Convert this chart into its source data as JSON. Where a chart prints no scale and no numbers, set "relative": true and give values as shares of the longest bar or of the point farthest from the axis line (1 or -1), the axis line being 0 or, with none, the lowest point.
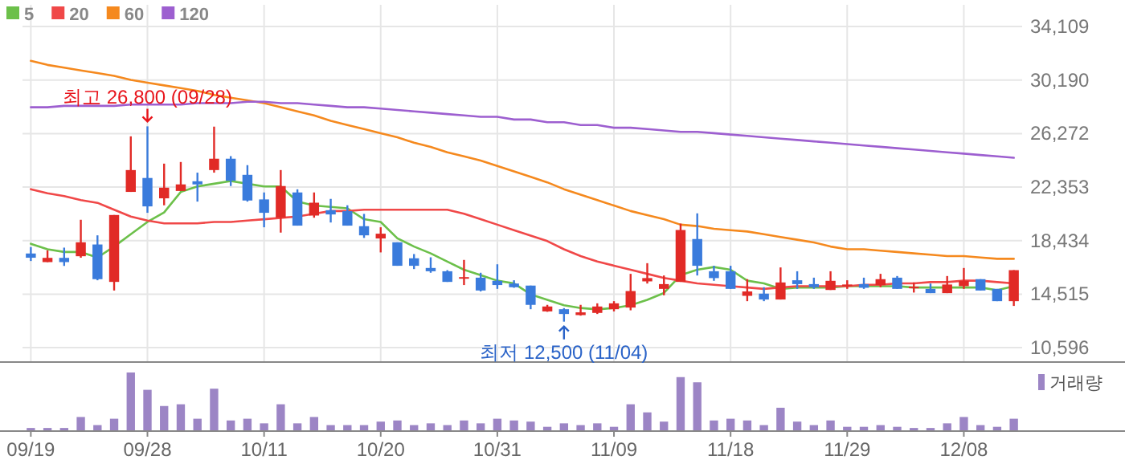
{
  "chart_data": [
    {
      "type": "candlestick",
      "categories": [
        "09/19",
        null,
        null,
        null,
        null,
        null,
        null,
        "09/28",
        null,
        null,
        null,
        null,
        null,
        null,
        "10/11",
        null,
        null,
        null,
        null,
        null,
        null,
        "10/20",
        null,
        null,
        null,
        null,
        null,
        null,
        "10/31",
        null,
        null,
        null,
        null,
        null,
        null,
        "11/09",
        null,
        null,
        null,
        null,
        null,
        null,
        "11/18",
        null,
        null,
        null,
        null,
        null,
        null,
        "11/29",
        null,
        null,
        null,
        null,
        null,
        null,
        "12/08",
        null,
        null,
        null
      ],
      "ohlc": [
        [
          17490,
          17960,
          16940,
          17180
        ],
        [
          16860,
          17720,
          16860,
          17170
        ],
        [
          17170,
          17920,
          16580,
          16860
        ],
        [
          17290,
          19960,
          17180,
          18310
        ],
        [
          18150,
          18820,
          15530,
          15610
        ],
        [
          15410,
          20310,
          14780,
          20310
        ],
        [
          22000,
          26070,
          22000,
          23600
        ],
        [
          23020,
          26800,
          20470,
          20940
        ],
        [
          21530,
          24070,
          21020,
          22310
        ],
        [
          22070,
          24190,
          22070,
          22550
        ],
        [
          22780,
          23410,
          21290,
          22550
        ],
        [
          23600,
          26780,
          23410,
          24430
        ],
        [
          24430,
          24620,
          22430,
          22820
        ],
        [
          23250,
          23960,
          21290,
          21370
        ],
        [
          21450,
          21960,
          19410,
          20470
        ],
        [
          20110,
          23600,
          19020,
          22430
        ],
        [
          21960,
          22190,
          19530,
          19530
        ],
        [
          20270,
          21960,
          20110,
          21210
        ],
        [
          20660,
          21490,
          19760,
          20350
        ],
        [
          20590,
          21020,
          19530,
          19530
        ],
        [
          19490,
          20390,
          18630,
          18820
        ],
        [
          18590,
          19410,
          17570,
          18940
        ],
        [
          18310,
          18310,
          16590,
          16590
        ],
        [
          17140,
          17450,
          16350,
          16590
        ],
        [
          16430,
          17210,
          16080,
          16190
        ],
        [
          16190,
          16270,
          15410,
          15410
        ],
        [
          15690,
          17020,
          15180,
          15760
        ],
        [
          15720,
          16080,
          14710,
          14780
        ],
        [
          15490,
          16700,
          14900,
          15180
        ],
        [
          15290,
          15530,
          14980,
          15020
        ],
        [
          15140,
          15140,
          13410,
          13730
        ],
        [
          13250,
          13730,
          13220,
          13610
        ],
        [
          13410,
          13490,
          12500,
          13060
        ],
        [
          12980,
          13730,
          12940,
          13180
        ],
        [
          13140,
          13840,
          13060,
          13610
        ],
        [
          13410,
          14000,
          13250,
          13840
        ],
        [
          13530,
          16000,
          13330,
          14740
        ],
        [
          15450,
          16780,
          15290,
          15690
        ],
        [
          14900,
          15880,
          14430,
          15250
        ],
        [
          15410,
          19680,
          15410,
          19210
        ],
        [
          18550,
          20430,
          15880,
          16590
        ],
        [
          16190,
          16590,
          15490,
          15690
        ],
        [
          16190,
          16590,
          14900,
          14900
        ],
        [
          14390,
          15610,
          14000,
          14710
        ],
        [
          14550,
          15020,
          14000,
          14120
        ],
        [
          14120,
          16470,
          14120,
          15370
        ],
        [
          15530,
          16190,
          14900,
          15250
        ],
        [
          15250,
          15720,
          14900,
          15020
        ],
        [
          14820,
          16190,
          14820,
          15490
        ],
        [
          15140,
          15530,
          14900,
          15220
        ],
        [
          15250,
          15720,
          14900,
          14980
        ],
        [
          15180,
          16000,
          15020,
          15610
        ],
        [
          15720,
          15840,
          14900,
          14900
        ],
        [
          14980,
          15370,
          14630,
          15060
        ],
        [
          14900,
          15290,
          14590,
          14590
        ],
        [
          14590,
          15840,
          14590,
          15220
        ],
        [
          15100,
          16430,
          14900,
          15490
        ],
        [
          15610,
          15610,
          14780,
          14780
        ],
        [
          14900,
          14900,
          14000,
          14000
        ],
        [
          14000,
          16270,
          13650,
          16270
        ]
      ],
      "colors": [
        "#3a7bdc",
        "#e12a26",
        "#3a7bdc",
        "#e12a26",
        "#3a7bdc",
        "#e12a26",
        "#e12a26",
        "#3a7bdc",
        "#e12a26",
        "#e12a26",
        "#3a7bdc",
        "#e12a26",
        "#3a7bdc",
        "#3a7bdc",
        "#3a7bdc",
        "#e12a26",
        "#3a7bdc",
        "#e12a26",
        "#3a7bdc",
        "#3a7bdc",
        "#3a7bdc",
        "#e12a26",
        "#3a7bdc",
        "#3a7bdc",
        "#3a7bdc",
        "#3a7bdc",
        "#e12a26",
        "#3a7bdc",
        "#3a7bdc",
        "#3a7bdc",
        "#3a7bdc",
        "#e12a26",
        "#3a7bdc",
        "#e12a26",
        "#e12a26",
        "#e12a26",
        "#e12a26",
        "#e12a26",
        "#e12a26",
        "#e12a26",
        "#3a7bdc",
        "#3a7bdc",
        "#3a7bdc",
        "#e12a26",
        "#3a7bdc",
        "#e12a26",
        "#3a7bdc",
        "#3a7bdc",
        "#e12a26",
        "#e12a26",
        "#3a7bdc",
        "#e12a26",
        "#3a7bdc",
        "#e12a26",
        "#3a7bdc",
        "#e12a26",
        "#e12a26",
        "#3a7bdc",
        "#3a7bdc",
        "#e12a26"
      ],
      "series": [
        {
          "type": "line",
          "name": "5",
          "color": "#6cc04a",
          "values": [
            18200,
            17800,
            17600,
            17600,
            17200,
            18000,
            18900,
            19800,
            20500,
            22000,
            22400,
            22600,
            22800,
            22600,
            22400,
            22400,
            21300,
            21000,
            20900,
            20800,
            20000,
            19800,
            18600,
            18000,
            17500,
            16900,
            16300,
            15900,
            15500,
            15300,
            14500,
            14100,
            13700,
            13500,
            13400,
            13500,
            13700,
            14100,
            14600,
            15900,
            16300,
            16500,
            16300,
            15500,
            15300,
            14900,
            15000,
            15000,
            15000,
            15100,
            15100,
            15100,
            15100,
            15000,
            15000,
            15000,
            15000,
            15000,
            14800,
            15100
          ]
        },
        {
          "type": "line",
          "name": "20",
          "color": "#f04848",
          "values": [
            22200,
            21900,
            21700,
            21400,
            21200,
            20700,
            20200,
            19900,
            19700,
            19700,
            19700,
            19800,
            19800,
            19900,
            20000,
            20100,
            20200,
            20400,
            20600,
            20600,
            20700,
            20700,
            20700,
            20700,
            20700,
            20700,
            20400,
            20000,
            19600,
            19200,
            18800,
            18400,
            17800,
            17300,
            16900,
            16600,
            16300,
            16000,
            15700,
            15500,
            15300,
            15200,
            15100,
            15000,
            14900,
            15000,
            15100,
            15100,
            15100,
            15100,
            15200,
            15200,
            15300,
            15300,
            15400,
            15400,
            15500,
            15500,
            15400,
            15300
          ]
        },
        {
          "type": "line",
          "name": "60",
          "color": "#f5891e",
          "values": [
            31600,
            31300,
            31100,
            30900,
            30700,
            30500,
            30200,
            30000,
            29800,
            29600,
            29400,
            29100,
            28900,
            28700,
            28500,
            28200,
            27900,
            27600,
            27200,
            26900,
            26600,
            26300,
            26000,
            25600,
            25300,
            24900,
            24600,
            24300,
            23900,
            23500,
            23100,
            22700,
            22200,
            21800,
            21400,
            21000,
            20600,
            20300,
            20000,
            19600,
            19500,
            19300,
            19200,
            19100,
            18900,
            18700,
            18500,
            18300,
            18000,
            17800,
            17800,
            17700,
            17600,
            17500,
            17400,
            17300,
            17300,
            17200,
            17100,
            17100
          ]
        },
        {
          "type": "line",
          "name": "120",
          "color": "#9d5fd0",
          "values": [
            28200,
            28200,
            28300,
            28300,
            28300,
            28300,
            28400,
            28400,
            28400,
            28400,
            28500,
            28500,
            28500,
            28600,
            28600,
            28500,
            28500,
            28400,
            28300,
            28200,
            28200,
            28100,
            28000,
            27900,
            27800,
            27700,
            27600,
            27500,
            27500,
            27300,
            27300,
            27100,
            27100,
            26900,
            26900,
            26700,
            26700,
            26600,
            26500,
            26400,
            26400,
            26300,
            26200,
            26100,
            26000,
            25900,
            25800,
            25700,
            25600,
            25500,
            25400,
            25300,
            25200,
            25100,
            25000,
            24900,
            24800,
            24700,
            24600,
            24500
          ]
        }
      ],
      "ylim": [
        9600,
        35700
      ],
      "yticks": [
        {
          "value": 10596,
          "label": "10,596"
        },
        {
          "value": 14515,
          "label": "14,515"
        },
        {
          "value": 18434,
          "label": "18,434"
        },
        {
          "value": 22353,
          "label": "22,353"
        },
        {
          "value": 26272,
          "label": "26,272"
        },
        {
          "value": 30190,
          "label": "30,190"
        },
        {
          "value": 34109,
          "label": "34,109"
        }
      ],
      "grid": true,
      "legend": "top left",
      "tick_labels": "y",
      "annotations": [
        {
          "text": "최고 26,800 (09/28)",
          "x": "09/28",
          "y": 26800
        },
        {
          "text": "최저 12,500 (11/04)",
          "y": 12500
        }
      ]
    },
    {
      "type": "bar",
      "categories": [
        "09/19",
        null,
        null,
        null,
        null,
        null,
        null,
        "09/28",
        null,
        null,
        null,
        null,
        null,
        null,
        "10/11",
        null,
        null,
        null,
        null,
        null,
        null,
        "10/20",
        null,
        null,
        null,
        null,
        null,
        null,
        "10/31",
        null,
        null,
        null,
        null,
        null,
        null,
        "11/09",
        null,
        null,
        null,
        null,
        null,
        null,
        "11/18",
        null,
        null,
        null,
        null,
        null,
        null,
        "11/29",
        null,
        null,
        null,
        null,
        null,
        null,
        "12/08",
        null,
        null,
        null
      ],
      "relative": true,
      "series": [
        {
          "name": "거래량",
          "color": "#9c85c5",
          "values": [
            0.04,
            0.04,
            0.04,
            0.23,
            0.09,
            0.2,
            1,
            0.7,
            0.42,
            0.45,
            0.2,
            0.72,
            0.17,
            0.2,
            0.12,
            0.45,
            0.12,
            0.23,
            0.09,
            0.09,
            0.09,
            0.15,
            0.17,
            0.09,
            0.12,
            0.09,
            0.17,
            0.12,
            0.2,
            0.17,
            0.15,
            0.06,
            0.12,
            0.09,
            0.12,
            0.06,
            0.45,
            0.31,
            0.15,
            0.92,
            0.83,
            0.17,
            0.2,
            0.17,
            0.09,
            0.39,
            0.15,
            0.09,
            0.17,
            0.06,
            0.06,
            0.09,
            0.06,
            0.04,
            0.04,
            0.12,
            0.23,
            0.09,
            0.06,
            0.2
          ]
        }
      ],
      "legend": "top right",
      "tick_labels": "x"
    }
  ]
}
